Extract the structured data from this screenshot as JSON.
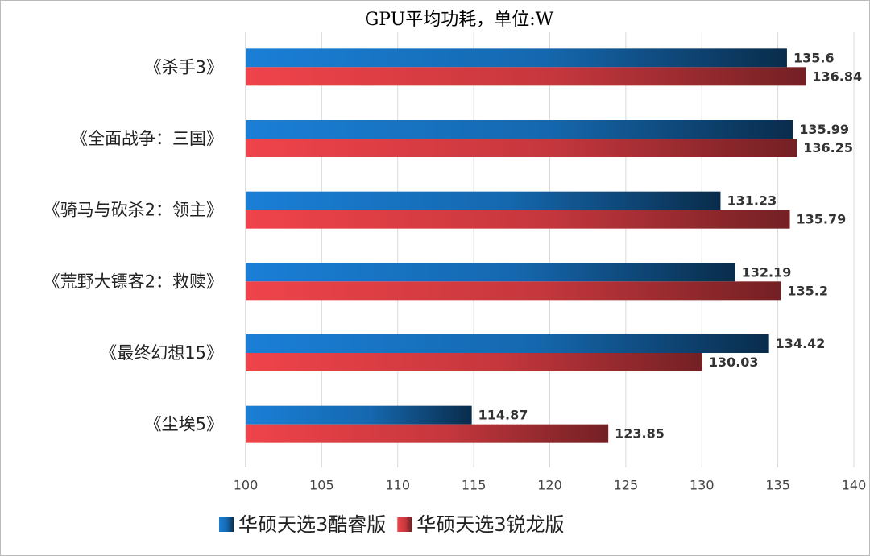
{
  "chart_data": {
    "type": "bar",
    "orientation": "horizontal",
    "title": "GPU平均功耗，单位:W",
    "categories": [
      "《杀手3》",
      "《全面战争：三国》",
      "《骑马与砍杀2：领主》",
      "《荒野大镖客2：救赎》",
      "《最终幻想15》",
      "《尘埃5》"
    ],
    "series": [
      {
        "name": "华硕天选3酷睿版",
        "color": "#1a7fd6",
        "values": [
          135.6,
          135.99,
          131.23,
          132.19,
          134.42,
          114.87
        ]
      },
      {
        "name": "华硕天选3锐龙版",
        "color": "#f0434a",
        "values": [
          136.84,
          136.25,
          135.79,
          135.2,
          130.03,
          123.85
        ]
      }
    ],
    "xlim": [
      100,
      140
    ],
    "xticks": [
      100,
      105,
      110,
      115,
      120,
      125,
      130,
      135,
      140
    ],
    "grid": true,
    "legend": "bottom"
  }
}
